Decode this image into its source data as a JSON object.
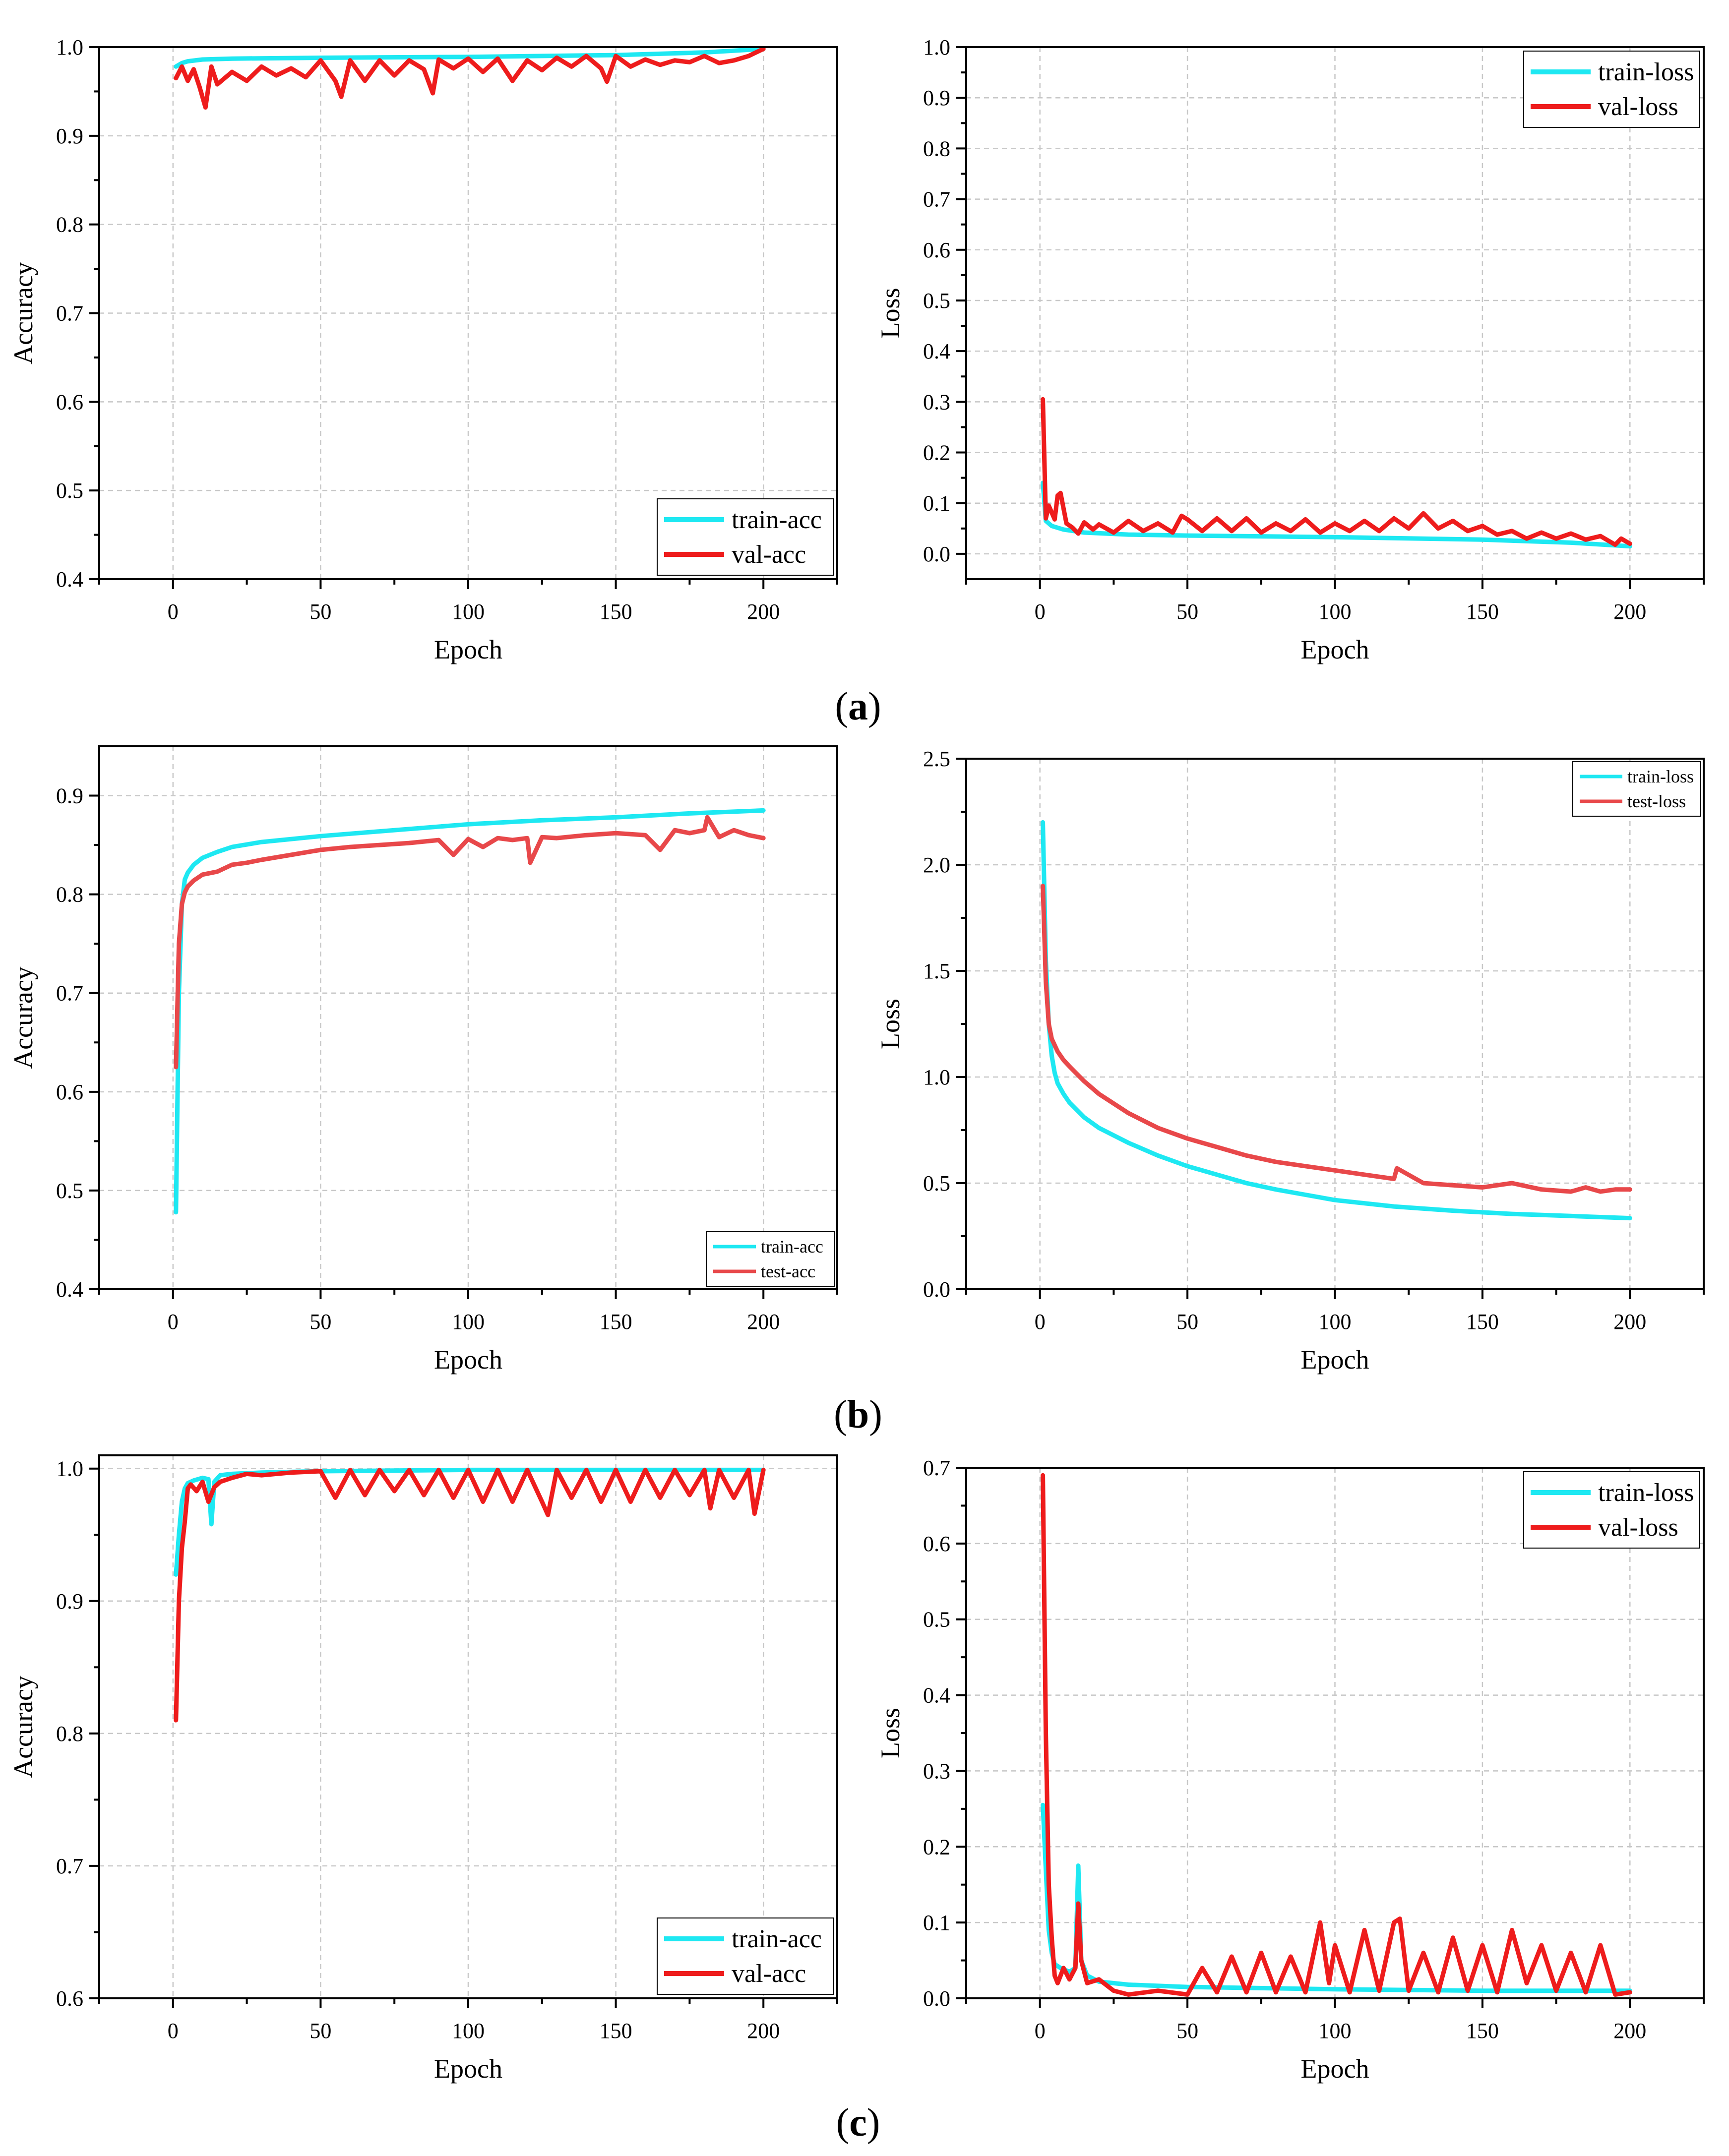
{
  "figure": {
    "panel_labels": [
      {
        "open": "(",
        "letter": "a",
        "close": ")"
      },
      {
        "open": "(",
        "letter": "b",
        "close": ")"
      },
      {
        "open": "(",
        "letter": "c",
        "close": ")"
      }
    ]
  },
  "colors": {
    "train": "#1ee8f2",
    "val": "#ee1c1c",
    "test": "#e8484a",
    "grid": "#c8c8c8",
    "axis": "#000000"
  },
  "chart_data": [
    {
      "id": "a-acc",
      "type": "line",
      "xlabel": "Epoch",
      "ylabel": "Accuracy",
      "xlim": [
        -25,
        225
      ],
      "ylim": [
        0.4,
        1.0
      ],
      "xticks": [
        0,
        50,
        100,
        150,
        200
      ],
      "yticks": [
        0.4,
        0.5,
        0.6,
        0.7,
        0.8,
        0.9,
        1.0
      ],
      "xtick_labels": [
        "0",
        "50",
        "100",
        "150",
        "200"
      ],
      "ytick_labels": [
        "0.4",
        "0.5",
        "0.6",
        "0.7",
        "0.8",
        "0.9",
        "1.0"
      ],
      "legend_position": "bottom-right",
      "legend_size": "large",
      "series": [
        {
          "name": "train-acc",
          "color": "#1ee8f2",
          "x": [
            1,
            3,
            5,
            10,
            20,
            50,
            100,
            150,
            180,
            200
          ],
          "y": [
            0.978,
            0.982,
            0.984,
            0.986,
            0.987,
            0.988,
            0.989,
            0.991,
            0.994,
            0.998
          ]
        },
        {
          "name": "val-acc",
          "color": "#ee1c1c",
          "x": [
            1,
            3,
            5,
            7,
            9,
            11,
            13,
            15,
            20,
            25,
            30,
            35,
            40,
            45,
            50,
            55,
            57,
            60,
            65,
            70,
            75,
            80,
            85,
            88,
            90,
            95,
            100,
            105,
            110,
            115,
            120,
            125,
            130,
            135,
            140,
            145,
            147,
            150,
            155,
            160,
            165,
            170,
            175,
            180,
            185,
            190,
            195,
            200
          ],
          "y": [
            0.965,
            0.978,
            0.962,
            0.975,
            0.955,
            0.932,
            0.978,
            0.958,
            0.972,
            0.962,
            0.978,
            0.968,
            0.976,
            0.966,
            0.985,
            0.962,
            0.944,
            0.985,
            0.962,
            0.985,
            0.968,
            0.985,
            0.975,
            0.948,
            0.986,
            0.976,
            0.987,
            0.972,
            0.987,
            0.962,
            0.985,
            0.974,
            0.988,
            0.978,
            0.99,
            0.976,
            0.961,
            0.99,
            0.978,
            0.986,
            0.98,
            0.985,
            0.983,
            0.99,
            0.982,
            0.985,
            0.99,
            0.998
          ]
        }
      ]
    },
    {
      "id": "a-loss",
      "type": "line",
      "xlabel": "Epoch",
      "ylabel": "Loss",
      "xlim": [
        -25,
        225
      ],
      "ylim": [
        -0.05,
        1.0
      ],
      "xticks": [
        0,
        50,
        100,
        150,
        200
      ],
      "yticks": [
        0.0,
        0.1,
        0.2,
        0.3,
        0.4,
        0.5,
        0.6,
        0.7,
        0.8,
        0.9,
        1.0
      ],
      "xtick_labels": [
        "0",
        "50",
        "100",
        "150",
        "200"
      ],
      "ytick_labels": [
        "0.0",
        "0.1",
        "0.2",
        "0.3",
        "0.4",
        "0.5",
        "0.6",
        "0.7",
        "0.8",
        "0.9",
        "1.0"
      ],
      "legend_position": "top-right",
      "legend_size": "large",
      "series": [
        {
          "name": "train-loss",
          "color": "#1ee8f2",
          "x": [
            1,
            2,
            4,
            8,
            15,
            30,
            50,
            100,
            150,
            180,
            200
          ],
          "y": [
            0.14,
            0.065,
            0.055,
            0.048,
            0.042,
            0.038,
            0.036,
            0.033,
            0.028,
            0.022,
            0.015
          ]
        },
        {
          "name": "val-loss",
          "color": "#ee1c1c",
          "x": [
            1,
            2,
            3,
            5,
            6,
            7,
            9,
            11,
            13,
            15,
            18,
            20,
            25,
            30,
            35,
            40,
            45,
            48,
            50,
            55,
            60,
            65,
            70,
            75,
            80,
            85,
            90,
            95,
            100,
            105,
            110,
            115,
            120,
            125,
            130,
            135,
            140,
            145,
            150,
            155,
            160,
            165,
            170,
            175,
            180,
            185,
            190,
            195,
            197,
            200
          ],
          "y": [
            0.305,
            0.07,
            0.095,
            0.068,
            0.115,
            0.12,
            0.06,
            0.052,
            0.04,
            0.062,
            0.048,
            0.058,
            0.042,
            0.065,
            0.045,
            0.06,
            0.042,
            0.075,
            0.068,
            0.045,
            0.07,
            0.045,
            0.07,
            0.042,
            0.06,
            0.045,
            0.068,
            0.042,
            0.06,
            0.045,
            0.065,
            0.045,
            0.07,
            0.05,
            0.08,
            0.05,
            0.065,
            0.045,
            0.055,
            0.038,
            0.045,
            0.03,
            0.042,
            0.03,
            0.04,
            0.028,
            0.035,
            0.018,
            0.03,
            0.02
          ]
        }
      ]
    },
    {
      "id": "b-acc",
      "type": "line",
      "xlabel": "Epoch",
      "ylabel": "Accuracy",
      "xlim": [
        -25,
        225
      ],
      "ylim": [
        0.4,
        0.95
      ],
      "xticks": [
        0,
        50,
        100,
        150,
        200
      ],
      "yticks": [
        0.4,
        0.5,
        0.6,
        0.7,
        0.8,
        0.9
      ],
      "xtick_labels": [
        "0",
        "50",
        "100",
        "150",
        "200"
      ],
      "ytick_labels": [
        "0.4",
        "0.5",
        "0.6",
        "0.7",
        "0.8",
        "0.9"
      ],
      "legend_position": "bottom-right",
      "legend_size": "small",
      "series": [
        {
          "name": "train-acc",
          "color": "#1ee8f2",
          "x": [
            1,
            2,
            3,
            4,
            5,
            7,
            10,
            15,
            20,
            30,
            50,
            75,
            100,
            125,
            150,
            175,
            200
          ],
          "y": [
            0.478,
            0.7,
            0.79,
            0.815,
            0.822,
            0.83,
            0.837,
            0.843,
            0.848,
            0.853,
            0.859,
            0.865,
            0.871,
            0.875,
            0.878,
            0.882,
            0.885
          ]
        },
        {
          "name": "test-acc",
          "color": "#e8484a",
          "x": [
            1,
            2,
            3,
            4,
            5,
            7,
            10,
            15,
            20,
            25,
            30,
            40,
            50,
            60,
            70,
            80,
            90,
            95,
            100,
            105,
            110,
            115,
            120,
            121,
            125,
            130,
            140,
            150,
            160,
            165,
            170,
            175,
            180,
            181,
            185,
            190,
            195,
            200
          ],
          "y": [
            0.625,
            0.75,
            0.79,
            0.802,
            0.808,
            0.814,
            0.82,
            0.823,
            0.83,
            0.832,
            0.835,
            0.84,
            0.845,
            0.848,
            0.85,
            0.852,
            0.855,
            0.84,
            0.856,
            0.848,
            0.857,
            0.855,
            0.857,
            0.832,
            0.858,
            0.857,
            0.86,
            0.862,
            0.86,
            0.845,
            0.865,
            0.862,
            0.865,
            0.878,
            0.858,
            0.865,
            0.86,
            0.857
          ]
        }
      ]
    },
    {
      "id": "b-loss",
      "type": "line",
      "xlabel": "Epoch",
      "ylabel": "Loss",
      "xlim": [
        -25,
        225
      ],
      "ylim": [
        0.0,
        2.5
      ],
      "xticks": [
        0,
        50,
        100,
        150,
        200
      ],
      "yticks": [
        0.0,
        0.5,
        1.0,
        1.5,
        2.0,
        2.5
      ],
      "xtick_labels": [
        "0",
        "50",
        "100",
        "150",
        "200"
      ],
      "ytick_labels": [
        "0.0",
        "0.5",
        "1.0",
        "1.5",
        "2.0",
        "2.5"
      ],
      "legend_position": "top-right",
      "legend_size": "small",
      "series": [
        {
          "name": "train-loss",
          "color": "#1ee8f2",
          "x": [
            1,
            2,
            3,
            4,
            5,
            6,
            8,
            10,
            15,
            20,
            30,
            40,
            50,
            60,
            70,
            80,
            90,
            100,
            120,
            140,
            160,
            180,
            200
          ],
          "y": [
            2.2,
            1.55,
            1.25,
            1.1,
            1.02,
            0.97,
            0.92,
            0.88,
            0.81,
            0.76,
            0.69,
            0.63,
            0.58,
            0.54,
            0.5,
            0.47,
            0.445,
            0.42,
            0.39,
            0.37,
            0.355,
            0.345,
            0.335
          ]
        },
        {
          "name": "test-loss",
          "color": "#e8484a",
          "x": [
            1,
            2,
            3,
            4,
            5,
            6,
            8,
            10,
            15,
            20,
            30,
            40,
            50,
            60,
            70,
            80,
            90,
            100,
            110,
            120,
            121,
            130,
            140,
            150,
            160,
            170,
            180,
            185,
            190,
            195,
            200
          ],
          "y": [
            1.9,
            1.45,
            1.25,
            1.18,
            1.15,
            1.12,
            1.08,
            1.05,
            0.98,
            0.92,
            0.83,
            0.76,
            0.71,
            0.67,
            0.63,
            0.6,
            0.58,
            0.56,
            0.54,
            0.52,
            0.57,
            0.5,
            0.49,
            0.48,
            0.5,
            0.47,
            0.46,
            0.48,
            0.46,
            0.47,
            0.47
          ]
        }
      ]
    },
    {
      "id": "c-acc",
      "type": "line",
      "xlabel": "Epoch",
      "ylabel": "Accuracy",
      "xlim": [
        -25,
        225
      ],
      "ylim": [
        0.6,
        1.01
      ],
      "xticks": [
        0,
        50,
        100,
        150,
        200
      ],
      "yticks": [
        0.6,
        0.7,
        0.8,
        0.9,
        1.0
      ],
      "xtick_labels": [
        "0",
        "50",
        "100",
        "150",
        "200"
      ],
      "ytick_labels": [
        "0.6",
        "0.7",
        "0.8",
        "0.9",
        "1.0"
      ],
      "legend_position": "bottom-right",
      "legend_size": "large",
      "series": [
        {
          "name": "train-acc",
          "color": "#1ee8f2",
          "x": [
            1,
            2,
            3,
            4,
            5,
            7,
            10,
            12,
            13,
            14,
            16,
            20,
            30,
            50,
            100,
            150,
            200
          ],
          "y": [
            0.92,
            0.95,
            0.975,
            0.985,
            0.989,
            0.991,
            0.993,
            0.992,
            0.958,
            0.99,
            0.995,
            0.996,
            0.997,
            0.998,
            0.999,
            0.999,
            0.999
          ]
        },
        {
          "name": "val-acc",
          "color": "#ee1c1c",
          "x": [
            1,
            2,
            3,
            4,
            5,
            6,
            8,
            10,
            12,
            14,
            16,
            20,
            25,
            30,
            40,
            50,
            55,
            60,
            65,
            70,
            75,
            80,
            85,
            90,
            95,
            100,
            105,
            110,
            115,
            120,
            125,
            127,
            130,
            135,
            140,
            145,
            150,
            155,
            160,
            165,
            170,
            175,
            180,
            182,
            185,
            190,
            195,
            197,
            200
          ],
          "y": [
            0.81,
            0.9,
            0.94,
            0.96,
            0.985,
            0.988,
            0.983,
            0.99,
            0.975,
            0.986,
            0.99,
            0.993,
            0.996,
            0.995,
            0.997,
            0.998,
            0.978,
            0.999,
            0.98,
            0.999,
            0.983,
            0.999,
            0.98,
            0.999,
            0.978,
            0.999,
            0.975,
            0.999,
            0.975,
            0.999,
            0.975,
            0.965,
            0.999,
            0.978,
            0.999,
            0.975,
            0.999,
            0.975,
            0.999,
            0.978,
            0.999,
            0.98,
            0.999,
            0.97,
            0.999,
            0.978,
            0.999,
            0.966,
            0.999
          ]
        }
      ]
    },
    {
      "id": "c-loss",
      "type": "line",
      "xlabel": "Epoch",
      "ylabel": "Loss",
      "xlim": [
        -25,
        225
      ],
      "ylim": [
        0.0,
        0.7
      ],
      "xticks": [
        0,
        50,
        100,
        150,
        200
      ],
      "yticks": [
        0.0,
        0.1,
        0.2,
        0.3,
        0.4,
        0.5,
        0.6,
        0.7
      ],
      "xtick_labels": [
        "0",
        "50",
        "100",
        "150",
        "200"
      ],
      "ytick_labels": [
        "0.0",
        "0.1",
        "0.2",
        "0.3",
        "0.4",
        "0.5",
        "0.6",
        "0.7"
      ],
      "legend_position": "top-right",
      "legend_size": "large",
      "series": [
        {
          "name": "train-loss",
          "color": "#1ee8f2",
          "x": [
            1,
            2,
            3,
            4,
            5,
            7,
            10,
            12,
            13,
            14,
            16,
            20,
            30,
            50,
            100,
            150,
            200
          ],
          "y": [
            0.255,
            0.17,
            0.09,
            0.06,
            0.045,
            0.04,
            0.035,
            0.04,
            0.175,
            0.05,
            0.03,
            0.022,
            0.018,
            0.015,
            0.012,
            0.01,
            0.01
          ]
        },
        {
          "name": "val-loss",
          "color": "#ee1c1c",
          "x": [
            1,
            2,
            3,
            4,
            5,
            6,
            8,
            10,
            12,
            13,
            14,
            16,
            20,
            25,
            30,
            40,
            50,
            55,
            60,
            65,
            70,
            75,
            80,
            85,
            90,
            95,
            98,
            100,
            105,
            110,
            115,
            120,
            122,
            125,
            130,
            135,
            140,
            145,
            150,
            155,
            160,
            165,
            170,
            175,
            180,
            185,
            190,
            195,
            200
          ],
          "y": [
            0.69,
            0.35,
            0.15,
            0.08,
            0.03,
            0.02,
            0.04,
            0.025,
            0.04,
            0.125,
            0.05,
            0.02,
            0.025,
            0.01,
            0.005,
            0.01,
            0.005,
            0.04,
            0.008,
            0.055,
            0.008,
            0.06,
            0.008,
            0.055,
            0.008,
            0.1,
            0.02,
            0.07,
            0.008,
            0.09,
            0.01,
            0.1,
            0.105,
            0.01,
            0.06,
            0.008,
            0.08,
            0.01,
            0.07,
            0.008,
            0.09,
            0.02,
            0.07,
            0.01,
            0.06,
            0.008,
            0.07,
            0.005,
            0.008
          ]
        }
      ]
    }
  ]
}
